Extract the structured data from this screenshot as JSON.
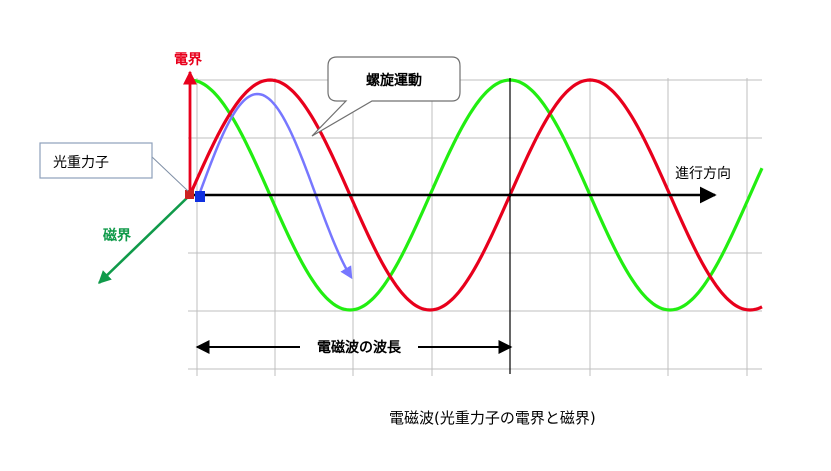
{
  "labels": {
    "electric_field": "電界",
    "magnetic_field": "磁界",
    "photon": "光重力子",
    "spiral_motion": "螺旋運動",
    "direction": "進行方向",
    "wavelength": "電磁波の波長",
    "caption": "電磁波(光重力子の電界と磁界)"
  },
  "colors": {
    "electric_wave": "#e8001c",
    "magnetic_wave": "#22ee11",
    "spiral_arrow": "#7777ff",
    "magnetic_axis": "#109a4a",
    "photon_square": "#1030e0",
    "photon_square_back": "#cc2222",
    "grid": "#bfbfbf",
    "axis": "#000000"
  }
}
